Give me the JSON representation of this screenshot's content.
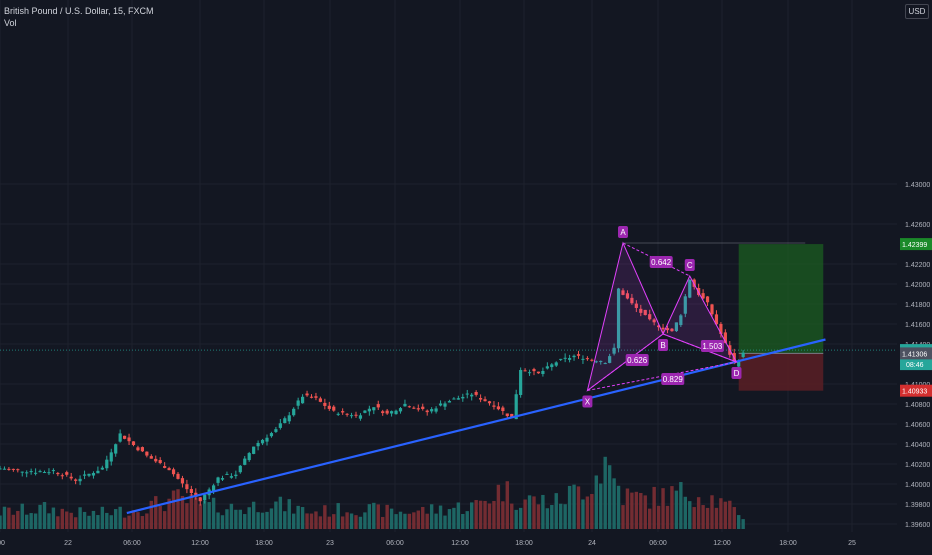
{
  "header": {
    "title": "British Pound / U.S. Dollar, 15, FXCM",
    "indicator": "Vol",
    "currency": "USD"
  },
  "colors": {
    "background": "#131722",
    "up": "#26a69a",
    "down": "#ef5350",
    "pattern": "#e040fb",
    "trendline": "#2962ff",
    "target_zone": "#1b5e20",
    "stop_zone": "#5a1f24",
    "grid": "#1e222d"
  },
  "chart_data": {
    "type": "candlestick",
    "title": "British Pound / U.S. Dollar, 15, FXCM",
    "ylim": [
      1.3905,
      1.4475
    ],
    "yticks": [
      "1.43000",
      "1.42600",
      "1.42200",
      "1.42000",
      "1.41800",
      "1.41600",
      "1.41400",
      "1.41000",
      "1.40800",
      "1.40600",
      "1.40400",
      "1.40200",
      "1.40000",
      "1.39800",
      "1.39600",
      "1.39400",
      "1.39200"
    ],
    "xticks": [
      ":00",
      "22",
      "06:00",
      "12:00",
      "18:00",
      "23",
      "06:00",
      "12:00",
      "18:00",
      "24",
      "06:00",
      "12:00",
      "18:00",
      "25"
    ],
    "price_path": [
      [
        0,
        1.4015
      ],
      [
        8,
        1.4012
      ],
      [
        12,
        1.4013
      ],
      [
        17,
        1.4004
      ],
      [
        23,
        1.4016
      ],
      [
        27,
        1.405
      ],
      [
        33,
        1.4028
      ],
      [
        38,
        1.4015
      ],
      [
        42,
        1.3995
      ],
      [
        45,
        1.3983
      ],
      [
        49,
        1.4006
      ],
      [
        53,
        1.401
      ],
      [
        57,
        1.4038
      ],
      [
        62,
        1.4054
      ],
      [
        65,
        1.407
      ],
      [
        68,
        1.4088
      ],
      [
        71,
        1.4085
      ],
      [
        75,
        1.4072
      ],
      [
        80,
        1.4068
      ],
      [
        84,
        1.4078
      ],
      [
        87,
        1.407
      ],
      [
        91,
        1.408
      ],
      [
        96,
        1.4072
      ],
      [
        100,
        1.4082
      ],
      [
        106,
        1.409
      ],
      [
        111,
        1.4079
      ],
      [
        115,
        1.4066
      ],
      [
        117,
        1.4115
      ],
      [
        121,
        1.411
      ],
      [
        125,
        1.4122
      ],
      [
        129,
        1.4128
      ],
      [
        133,
        1.4124
      ],
      [
        136,
        1.4122
      ],
      [
        138,
        1.4135
      ],
      [
        139,
        1.4195
      ],
      [
        142,
        1.418
      ],
      [
        146,
        1.4163
      ],
      [
        149,
        1.4156
      ],
      [
        151,
        1.4152
      ],
      [
        153,
        1.417
      ],
      [
        155,
        1.4205
      ],
      [
        157,
        1.419
      ],
      [
        159,
        1.418
      ],
      [
        162,
        1.415
      ],
      [
        165,
        1.412
      ],
      [
        167,
        1.413
      ]
    ],
    "volume_path": [
      [
        0,
        0.25
      ],
      [
        10,
        0.3
      ],
      [
        20,
        0.22
      ],
      [
        30,
        0.28
      ],
      [
        40,
        0.45
      ],
      [
        45,
        0.35
      ],
      [
        55,
        0.3
      ],
      [
        60,
        0.4
      ],
      [
        70,
        0.25
      ],
      [
        80,
        0.3
      ],
      [
        90,
        0.25
      ],
      [
        100,
        0.3
      ],
      [
        107,
        0.35
      ],
      [
        113,
        0.6
      ],
      [
        116,
        0.45
      ],
      [
        125,
        0.4
      ],
      [
        133,
        0.7
      ],
      [
        136,
        1.0
      ],
      [
        140,
        0.5
      ],
      [
        145,
        0.45
      ],
      [
        155,
        0.55
      ],
      [
        160,
        0.45
      ],
      [
        167,
        0.2
      ]
    ],
    "last_candle_index": 167,
    "harmonic_pattern": {
      "points": [
        {
          "label": "X",
          "bar": 132,
          "price": 1.40935
        },
        {
          "label": "A",
          "bar": 140,
          "price": 1.4241
        },
        {
          "label": "B",
          "bar": 149,
          "price": 1.415
        },
        {
          "label": "C",
          "bar": 155,
          "price": 1.4208
        },
        {
          "label": "D",
          "bar": 165.5,
          "price": 1.4122
        }
      ],
      "ratios": [
        {
          "text": "0.642",
          "bar": 146,
          "price": 1.4222
        },
        {
          "text": "0.626",
          "bar": 140.6,
          "price": 1.4124
        },
        {
          "text": "0.829",
          "bar": 148.6,
          "price": 1.4105
        },
        {
          "text": "1.503",
          "bar": 157.5,
          "price": 1.4138
        }
      ]
    },
    "trendline": {
      "from": [
        28.5,
        1.3971
      ],
      "to": [
        185.5,
        1.41445
      ]
    },
    "position": {
      "entry": 1.41306,
      "target": 1.42399,
      "stop": 1.40933,
      "bar_from": 166,
      "bar_to": 185
    }
  },
  "price_labels": {
    "target": "1.42399",
    "current": "1.41339",
    "countdown": "08:46",
    "entry": "1.41306",
    "stop": "1.40933"
  }
}
